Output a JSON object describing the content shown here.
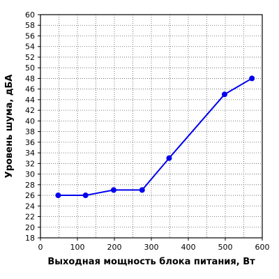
{
  "chart_data": {
    "type": "line",
    "xlabel": "Выходная мощность блока питания, Вт",
    "ylabel": "Уровень шума, дБА",
    "xlim": [
      0,
      600
    ],
    "ylim": [
      18,
      60
    ],
    "x_ticks": [
      0,
      100,
      200,
      300,
      400,
      500,
      600
    ],
    "y_ticks": [
      18,
      20,
      22,
      24,
      26,
      28,
      30,
      32,
      34,
      36,
      38,
      40,
      42,
      44,
      46,
      48,
      50,
      52,
      54,
      56,
      58,
      60
    ],
    "x_tick_labels": [
      "0",
      "100",
      "200",
      "300",
      "400",
      "500",
      "600"
    ],
    "y_tick_labels": [
      "18",
      "20",
      "22",
      "24",
      "26",
      "28",
      "30",
      "32",
      "34",
      "36",
      "38",
      "40",
      "42",
      "44",
      "46",
      "48",
      "50",
      "52",
      "54",
      "56",
      "58",
      "60"
    ],
    "x_minor_step": 50,
    "grid": true,
    "series": [
      {
        "color": "#0000ee",
        "x": [
          48,
          122,
          198,
          275,
          348,
          498,
          572
        ],
        "y": [
          26,
          26,
          27,
          27,
          33,
          45,
          48
        ]
      }
    ]
  }
}
